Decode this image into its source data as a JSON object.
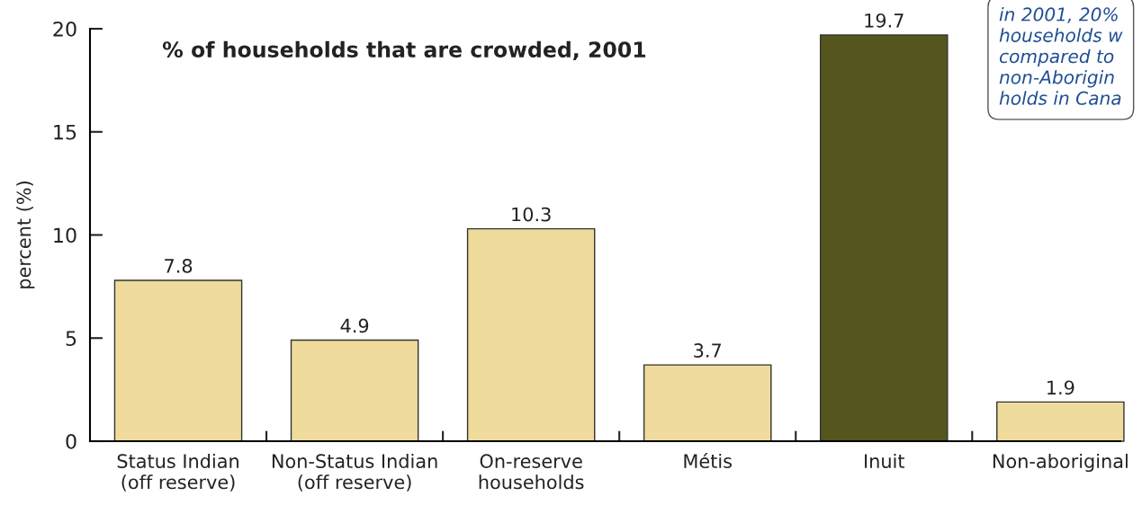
{
  "chart_data": {
    "type": "bar",
    "title": "% of households that are crowded, 2001",
    "ylabel": "percent (%)",
    "categories": [
      "Status Indian\n(off reserve)",
      "Non-Status Indian\n(off reserve)",
      "On-reserve\nhouseholds",
      "Métis",
      "Inuit",
      "Non-aboriginal"
    ],
    "values": [
      7.8,
      4.9,
      10.3,
      3.7,
      19.7,
      1.9
    ],
    "colors": [
      "#efdb9b",
      "#efdb9b",
      "#efdb9b",
      "#efdb9b",
      "#54561e",
      "#efdb9b"
    ],
    "ylim": [
      0,
      20
    ],
    "yticks": [
      0,
      5,
      10,
      15,
      20
    ],
    "grid": false,
    "data_labels": true,
    "annotations": [
      "in 2001, 20%\nhouseholds w\ncompared to\nnon-Aborigin\nholds in Cana"
    ]
  }
}
